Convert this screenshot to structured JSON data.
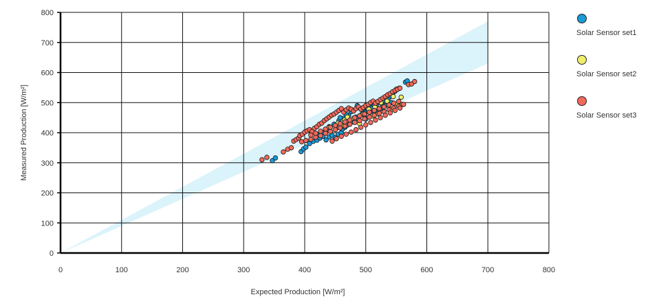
{
  "chart_data": {
    "type": "scatter",
    "xlabel": "Expected Production [W/m²]",
    "ylabel": "Measured Production [W/m²]",
    "xlim": [
      0,
      800
    ],
    "ylim": [
      0,
      800
    ],
    "xticks": [
      0,
      100,
      200,
      300,
      400,
      500,
      600,
      700,
      800
    ],
    "yticks": [
      0,
      100,
      200,
      300,
      400,
      500,
      600,
      700,
      800
    ],
    "grid": true,
    "legend_position": "right",
    "band": {
      "color": "#dbf3fb",
      "upper": [
        [
          0,
          0
        ],
        [
          700,
          770
        ]
      ],
      "lower": [
        [
          0,
          0
        ],
        [
          700,
          630
        ]
      ]
    },
    "series": [
      {
        "name": "Solar Sensor set1",
        "color": "#1a9ad6",
        "points": [
          [
            347,
            307
          ],
          [
            352,
            316
          ],
          [
            394,
            337
          ],
          [
            398,
            346
          ],
          [
            402,
            352
          ],
          [
            408,
            364
          ],
          [
            414,
            371
          ],
          [
            420,
            375
          ],
          [
            425,
            382
          ],
          [
            430,
            388
          ],
          [
            435,
            376
          ],
          [
            440,
            386
          ],
          [
            445,
            391
          ],
          [
            450,
            384
          ],
          [
            455,
            395
          ],
          [
            460,
            400
          ],
          [
            462,
            412
          ],
          [
            466,
            418
          ],
          [
            470,
            425
          ],
          [
            474,
            430
          ],
          [
            478,
            436
          ],
          [
            480,
            447
          ],
          [
            484,
            452
          ],
          [
            488,
            446
          ],
          [
            490,
            456
          ],
          [
            494,
            462
          ],
          [
            498,
            458
          ],
          [
            500,
            468
          ],
          [
            504,
            472
          ],
          [
            508,
            476
          ],
          [
            510,
            482
          ],
          [
            514,
            490
          ],
          [
            518,
            495
          ],
          [
            522,
            502
          ],
          [
            526,
            497
          ],
          [
            530,
            508
          ],
          [
            534,
            512
          ],
          [
            538,
            516
          ],
          [
            540,
            522
          ],
          [
            544,
            530
          ],
          [
            548,
            538
          ],
          [
            565,
            568
          ],
          [
            568,
            572
          ],
          [
            440,
            420
          ],
          [
            448,
            428
          ],
          [
            456,
            440
          ],
          [
            464,
            448
          ],
          [
            472,
            458
          ],
          [
            496,
            480
          ],
          [
            506,
            492
          ],
          [
            516,
            470
          ],
          [
            524,
            480
          ],
          [
            532,
            490
          ],
          [
            542,
            500
          ],
          [
            420,
            395
          ],
          [
            428,
            402
          ],
          [
            436,
            410
          ],
          [
            452,
            415
          ],
          [
            458,
            450
          ],
          [
            468,
            460
          ],
          [
            476,
            470
          ],
          [
            486,
            490
          ],
          [
            500,
            445
          ],
          [
            512,
            460
          ]
        ]
      },
      {
        "name": "Solar Sensor set2",
        "color": "#eef06a",
        "points": [
          [
            440,
            418
          ],
          [
            455,
            432
          ],
          [
            465,
            442
          ],
          [
            480,
            448
          ],
          [
            490,
            430
          ],
          [
            496,
            462
          ],
          [
            505,
            478
          ],
          [
            515,
            485
          ],
          [
            525,
            500
          ],
          [
            535,
            505
          ],
          [
            545,
            520
          ],
          [
            550,
            545
          ],
          [
            555,
            548
          ],
          [
            558,
            518
          ],
          [
            560,
            494
          ],
          [
            552,
            495
          ],
          [
            542,
            478
          ],
          [
            530,
            470
          ],
          [
            520,
            462
          ],
          [
            510,
            455
          ],
          [
            470,
            452
          ],
          [
            460,
            425
          ]
        ]
      },
      {
        "name": "Solar Sensor set3",
        "color": "#f26a5c",
        "points": [
          [
            330,
            310
          ],
          [
            338,
            318
          ],
          [
            365,
            336
          ],
          [
            372,
            345
          ],
          [
            378,
            350
          ],
          [
            382,
            372
          ],
          [
            386,
            377
          ],
          [
            390,
            382
          ],
          [
            392,
            390
          ],
          [
            396,
            395
          ],
          [
            400,
            402
          ],
          [
            404,
            406
          ],
          [
            408,
            410
          ],
          [
            412,
            404
          ],
          [
            416,
            415
          ],
          [
            420,
            420
          ],
          [
            424,
            428
          ],
          [
            428,
            432
          ],
          [
            432,
            440
          ],
          [
            436,
            446
          ],
          [
            440,
            452
          ],
          [
            444,
            458
          ],
          [
            448,
            462
          ],
          [
            452,
            468
          ],
          [
            456,
            474
          ],
          [
            460,
            480
          ],
          [
            464,
            468
          ],
          [
            468,
            476
          ],
          [
            472,
            482
          ],
          [
            476,
            478
          ],
          [
            480,
            472
          ],
          [
            484,
            480
          ],
          [
            488,
            486
          ],
          [
            492,
            478
          ],
          [
            496,
            484
          ],
          [
            500,
            490
          ],
          [
            504,
            494
          ],
          [
            508,
            500
          ],
          [
            512,
            505
          ],
          [
            516,
            498
          ],
          [
            520,
            504
          ],
          [
            524,
            510
          ],
          [
            528,
            515
          ],
          [
            532,
            520
          ],
          [
            536,
            526
          ],
          [
            540,
            530
          ],
          [
            544,
            536
          ],
          [
            548,
            540
          ],
          [
            552,
            544
          ],
          [
            556,
            548
          ],
          [
            570,
            560
          ],
          [
            575,
            562
          ],
          [
            580,
            570
          ],
          [
            395,
            370
          ],
          [
            402,
            374
          ],
          [
            410,
            378
          ],
          [
            418,
            385
          ],
          [
            426,
            390
          ],
          [
            434,
            398
          ],
          [
            442,
            404
          ],
          [
            450,
            410
          ],
          [
            458,
            416
          ],
          [
            466,
            422
          ],
          [
            474,
            428
          ],
          [
            482,
            434
          ],
          [
            490,
            440
          ],
          [
            498,
            446
          ],
          [
            506,
            452
          ],
          [
            514,
            458
          ],
          [
            522,
            464
          ],
          [
            530,
            470
          ],
          [
            538,
            476
          ],
          [
            546,
            482
          ],
          [
            554,
            488
          ],
          [
            562,
            494
          ],
          [
            410,
            392
          ],
          [
            418,
            398
          ],
          [
            426,
            405
          ],
          [
            434,
            412
          ],
          [
            442,
            418
          ],
          [
            450,
            424
          ],
          [
            458,
            430
          ],
          [
            466,
            436
          ],
          [
            474,
            442
          ],
          [
            482,
            450
          ],
          [
            490,
            456
          ],
          [
            498,
            462
          ],
          [
            506,
            468
          ],
          [
            514,
            474
          ],
          [
            522,
            480
          ],
          [
            530,
            486
          ],
          [
            538,
            492
          ],
          [
            546,
            498
          ],
          [
            554,
            504
          ],
          [
            445,
            372
          ],
          [
            452,
            380
          ],
          [
            460,
            388
          ],
          [
            468,
            395
          ],
          [
            476,
            402
          ],
          [
            484,
            410
          ],
          [
            492,
            418
          ],
          [
            500,
            426
          ],
          [
            508,
            434
          ],
          [
            516,
            442
          ],
          [
            524,
            450
          ],
          [
            532,
            458
          ],
          [
            540,
            466
          ],
          [
            548,
            474
          ],
          [
            556,
            482
          ]
        ]
      }
    ]
  }
}
